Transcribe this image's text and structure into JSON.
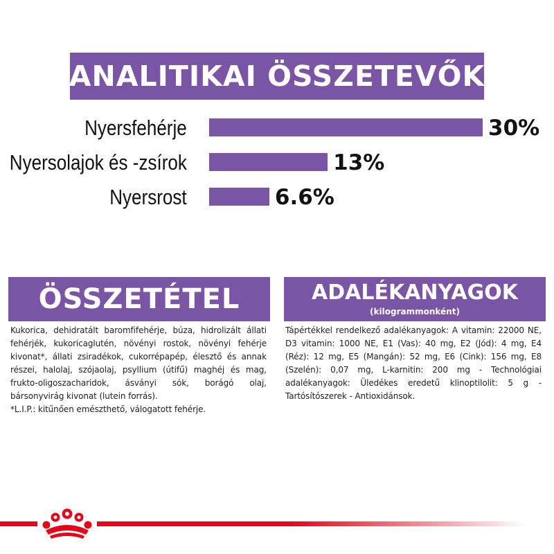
{
  "header": {
    "title": "ANALITIKAI ÖSSZETEVŐK"
  },
  "accent_color": "#7a55a6",
  "brand_red": "#e1061a",
  "analytics": [
    {
      "label": "Nyersfehérje",
      "value_text": "30%",
      "value": 30
    },
    {
      "label": "Nyersolajok és -zsírok",
      "value_text": "13%",
      "value": 13
    },
    {
      "label": "Nyersrost",
      "value_text": "6.6%",
      "value": 6.6
    }
  ],
  "composition": {
    "title": "ÖSSZETÉTEL",
    "text": "Kukorica, dehidratált baromfifehérje, búza, hidrolizált állati fehérjék, kukoricaglutén, növényi rostok, növényi fehérje kivonat*, állati zsiradékok, cukorrépapép, élesztő és annak részei, halolaj, szójaolaj, psyllium (útifű) maghéj és mag, frukto-oligoszacharidok, ásványi sók, borágó olaj, bársonyvirág kivonat (lutein forrás).",
    "footnote": "*L.I.P.: kitűnően emészthető, válogatott fehérje."
  },
  "additives": {
    "title": "ADALÉKANYAGOK",
    "subtitle": "(kilogrammonként)",
    "text": "Tápértékkel rendelkező adalékanyagok: A vitamin: 22000 NE, D3 vitamin: 1000 NE, E1 (Vas): 40 mg, E2 (Jód): 4 mg, E4 (Réz): 12 mg, E5 (Mangán): 52 mg, E6 (Cink): 156 mg, E8 (Szelén): 0,07 mg, L-karnitin: 200 mg - Technológiai adalékanyagok: Üledékes eredetű klinoptilolit: 5 g - Tartósítószerek - Antioxidánsok."
  },
  "footer": {
    "logo_icon": "royal-canin-crown-icon"
  }
}
